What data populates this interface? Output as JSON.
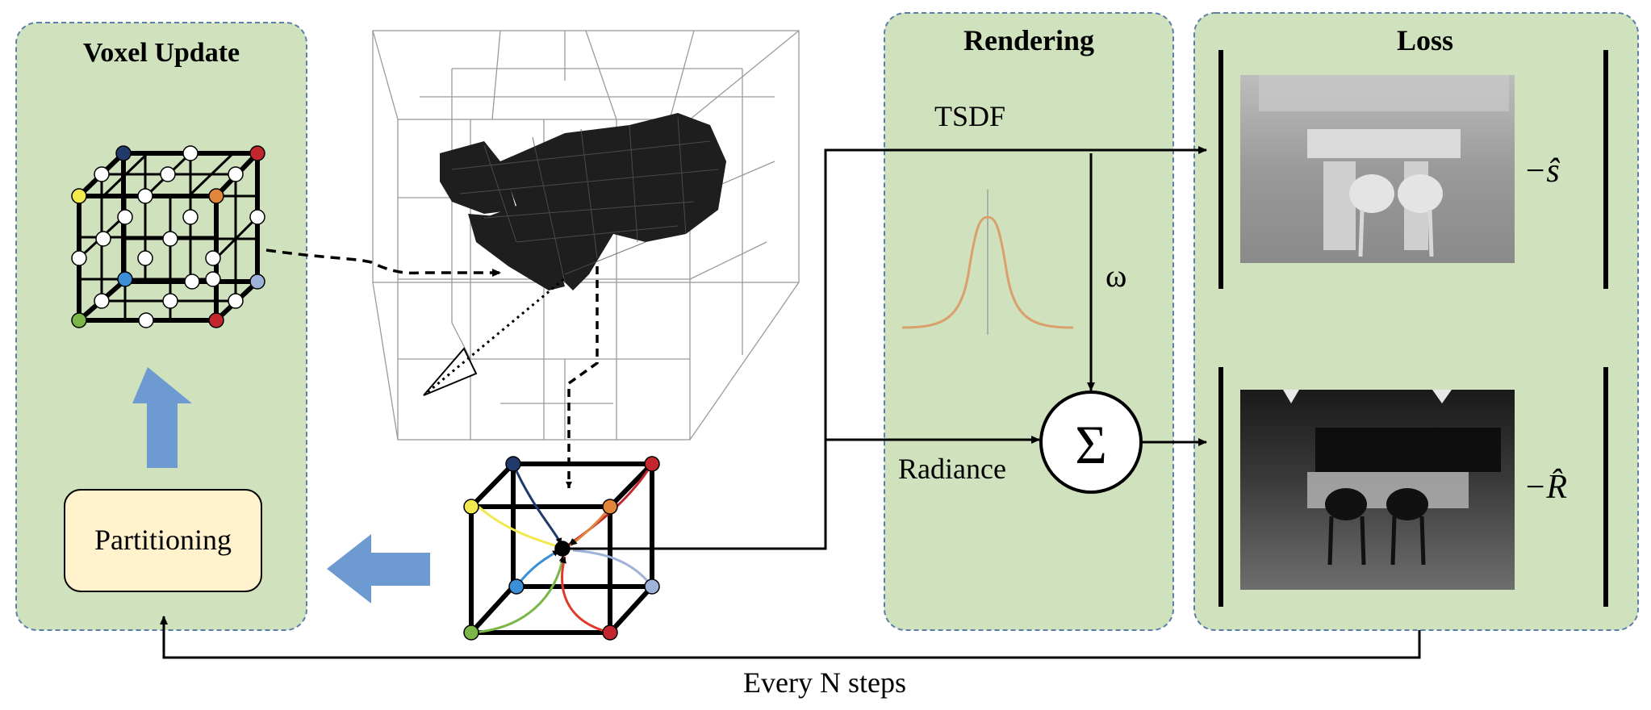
{
  "panels": {
    "voxel_update": {
      "title": "Voxel Update",
      "partition_label": "Partitioning"
    },
    "rendering": {
      "title": "Rendering",
      "tsdf_label": "TSDF",
      "weight_symbol": "ω",
      "radiance_label": "Radiance",
      "sum_symbol": "Σ"
    },
    "loss": {
      "title": "Loss",
      "top_term": "−ŝ",
      "bottom_term": "−R̂"
    }
  },
  "feedback_label": "Every N steps",
  "colors": {
    "panel_fill": "#cfe2bd",
    "panel_border": "#5b7fa8",
    "partition_box": "#fff2cc",
    "arrow_blue": "#6d9bd1",
    "gaussian": "#d9a06b",
    "node_colors": [
      "#1f3a6b",
      "#c1272d",
      "#f2e94e",
      "#e0853a",
      "#3a8fd6",
      "#9fb3d9",
      "#7ab648"
    ]
  },
  "icons": [
    "up-arrow-icon",
    "left-arrow-icon",
    "camera-icon",
    "sum-icon"
  ]
}
